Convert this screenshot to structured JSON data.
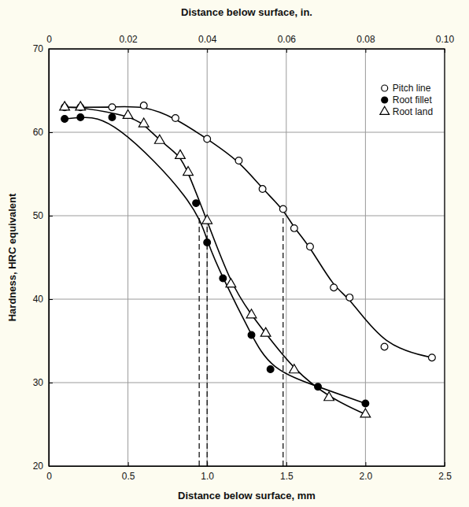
{
  "chart_data": {
    "type": "scatter",
    "x_label": "Distance below surface, mm",
    "x2_label": "Distance below surface, in.",
    "y_label": "Hardness, HRC equivalent",
    "xlim": [
      0,
      2.5
    ],
    "xticks": [
      0,
      0.5,
      {
        "value": 1.0,
        "label": "1.0"
      },
      1.5,
      {
        "value": 2.0,
        "label": "2.0"
      },
      2.5
    ],
    "x2lim": [
      0,
      0.1
    ],
    "x2ticks": [
      0,
      0.02,
      0.04,
      0.06,
      0.08,
      {
        "value": 0.1,
        "label": "0.10"
      }
    ],
    "ylim": [
      20,
      70
    ],
    "yticks": [
      20,
      30,
      40,
      50,
      60,
      70
    ],
    "grid": true,
    "legend": "upper right",
    "series": [
      {
        "name": "Pitch line",
        "color": "#000000",
        "marker": "circle-open",
        "line_style": "solid",
        "x": [
          0.1,
          0.2,
          0.4,
          0.6,
          0.8,
          1.0,
          1.2,
          1.35,
          1.48,
          1.55,
          1.65,
          1.8,
          1.9,
          2.12,
          2.42
        ],
        "values": [
          63,
          63,
          63,
          63.2,
          61.7,
          59.2,
          56.6,
          53.2,
          50.8,
          48.5,
          46.3,
          41.4,
          40.2,
          34.3,
          33
        ]
      },
      {
        "name": "Root fillet",
        "color": "#000000",
        "marker": "circle",
        "line_style": "solid",
        "x": [
          0.1,
          0.2,
          0.4,
          0.93,
          1.0,
          1.1,
          1.28,
          1.4,
          1.7,
          2.0
        ],
        "values": [
          61.6,
          61.8,
          61.8,
          51.5,
          46.8,
          42.5,
          35.7,
          31.6,
          29.5,
          27.5
        ]
      },
      {
        "name": "Root land",
        "color": "#000000",
        "marker": "triangle-open",
        "line_style": "solid",
        "x": [
          0.1,
          0.2,
          0.5,
          0.6,
          0.7,
          0.83,
          0.88,
          1.0,
          1.15,
          1.28,
          1.37,
          1.55,
          1.77,
          2.0
        ],
        "values": [
          63,
          63,
          62,
          61,
          59,
          57.2,
          55.2,
          49.4,
          41.8,
          38.1,
          35.9,
          31.5,
          28.2,
          26.2
        ]
      }
    ],
    "vlines": [
      {
        "x": 0.95,
        "y": 50
      },
      {
        "x": 1.0,
        "y": 50
      },
      {
        "x": 1.48,
        "y": 50
      }
    ]
  }
}
